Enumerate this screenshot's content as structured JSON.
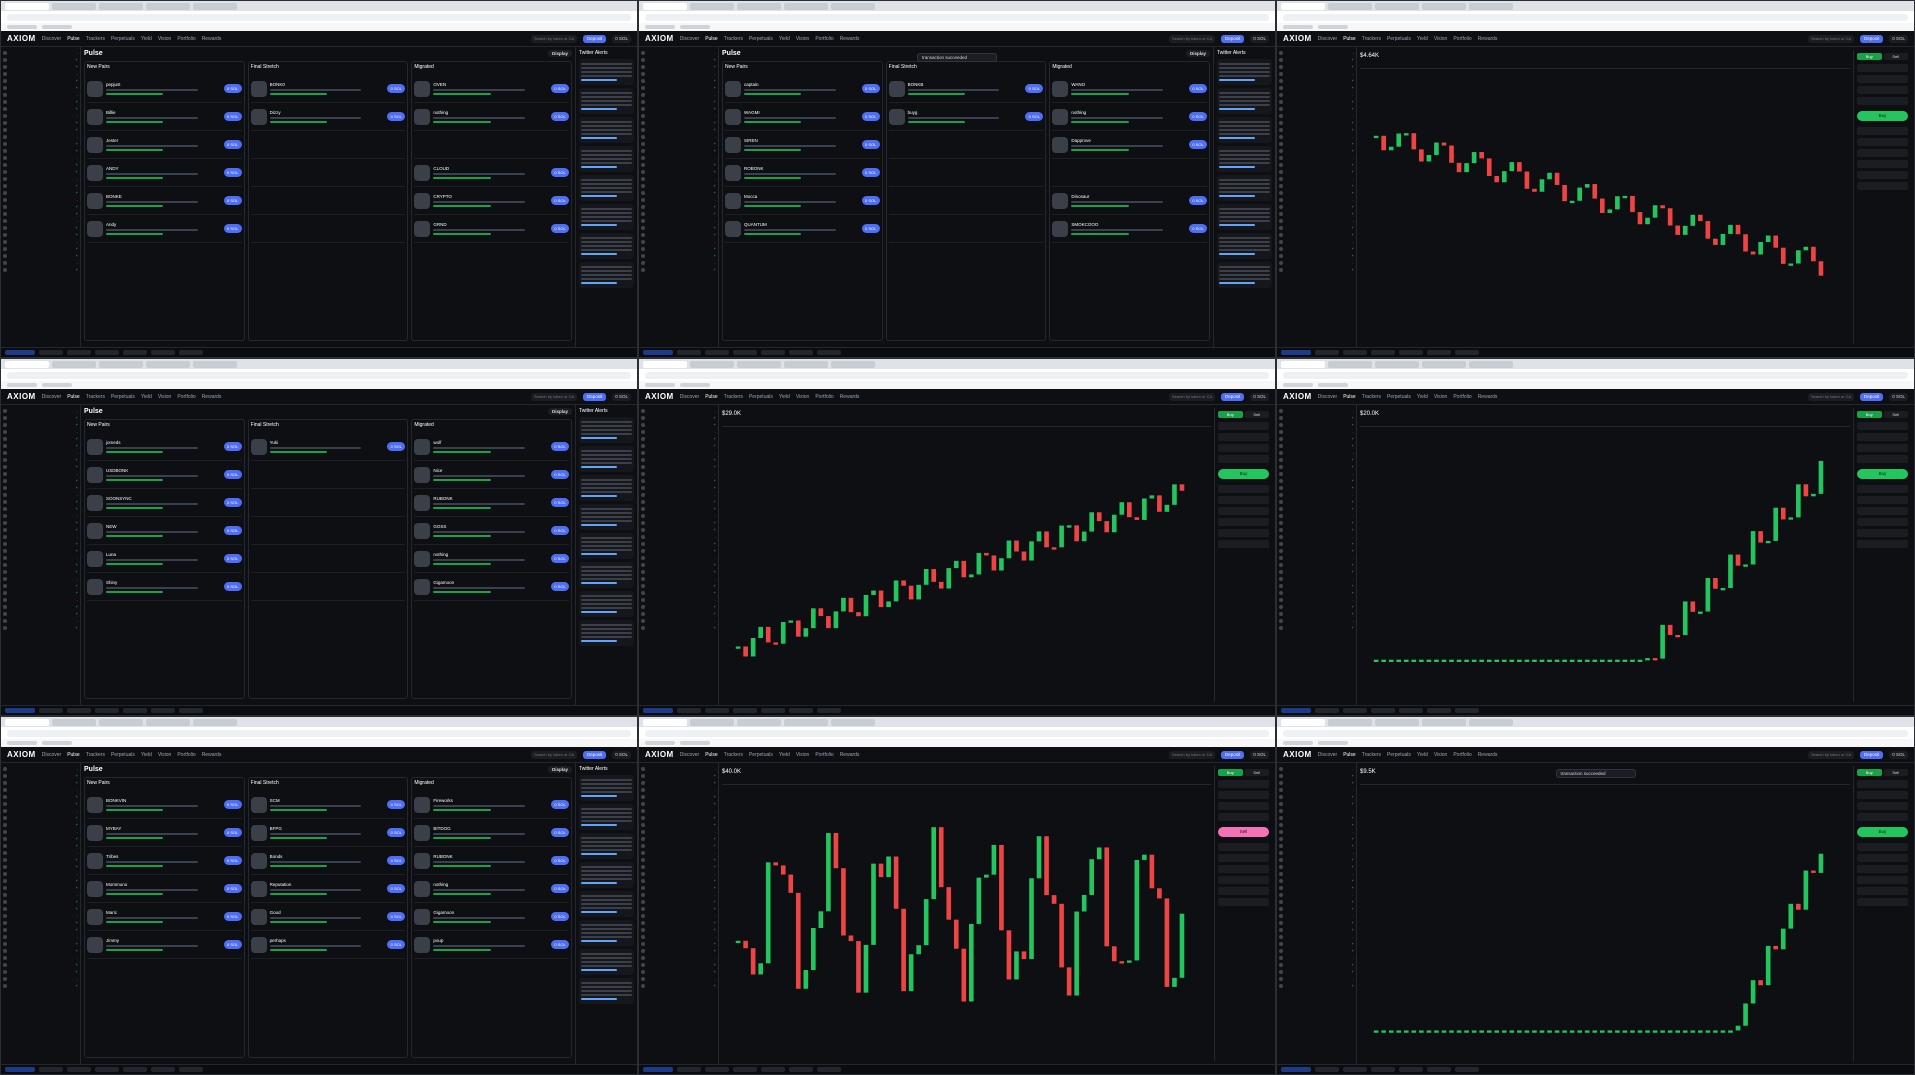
{
  "app": {
    "logo": "AXIOM",
    "nav": [
      "Discover",
      "Pulse",
      "Trackers",
      "Perpetuals",
      "Yield",
      "Vision",
      "Portfolio",
      "Rewards"
    ],
    "search_placeholder": "Search by token or CA",
    "deposit": "Deposit",
    "balance": "0 SOL"
  },
  "pulse": {
    "title": "Pulse",
    "display": "Display",
    "columns": [
      "New Pairs",
      "Final Stretch",
      "Migrated"
    ],
    "buy_label": "0 SOL"
  },
  "feed": {
    "title": "Twitter Alerts"
  },
  "chart": {
    "buy_label": "Buy",
    "sell_label": "Sell"
  },
  "toast": {
    "text": "transaction succeeded"
  },
  "tiles": [
    {
      "type": "pulse",
      "cards": [
        [
          "pepjust",
          "BONK0",
          "OVEN"
        ],
        [
          "Billie",
          "Dizzy",
          "nothing"
        ],
        [
          "Jester",
          "",
          ""
        ],
        [
          "ANDY",
          "",
          "CLOUD"
        ],
        [
          "BONKE",
          "",
          "CRYPTO"
        ],
        [
          "Andy",
          "",
          "GRND"
        ]
      ]
    },
    {
      "type": "pulse",
      "toast": true,
      "cards": [
        [
          "captain",
          "BONKB",
          "WANO"
        ],
        [
          "WAGMI",
          "buyg",
          "nothing"
        ],
        [
          "SIREN",
          "",
          "Dapprove"
        ],
        [
          "ROBONK",
          "",
          ""
        ],
        [
          "Mocca",
          "",
          "Dinosaur"
        ],
        [
          "QUANTUM",
          "",
          "SMOKCOOO"
        ]
      ]
    },
    {
      "type": "chart",
      "price": "$4.64K",
      "change": "",
      "trend": "down"
    },
    {
      "type": "pulse",
      "cards": [
        [
          "jomeds",
          "Yuki",
          "wolf"
        ],
        [
          "USDBONK",
          "",
          "Nice"
        ],
        [
          "SOONSYNC",
          "",
          "RUBONK"
        ],
        [
          "NEW",
          "",
          "GOSS"
        ],
        [
          "Luna",
          "",
          "nothing"
        ],
        [
          "Shiny",
          "",
          "Gigamoon"
        ]
      ]
    },
    {
      "type": "chart",
      "price": "$29.0K",
      "change": "",
      "trend": "up"
    },
    {
      "type": "chart",
      "price": "$20.0K",
      "change": "",
      "trend": "spike"
    },
    {
      "type": "pulse",
      "cards": [
        [
          "BONKVIN",
          "SCM",
          "Fireworks"
        ],
        [
          "MYBAY",
          "BFPG",
          "BITDOG"
        ],
        [
          "Tribes",
          "Bonds",
          "RUBONK"
        ],
        [
          "Mommuno",
          "Reputation",
          "nothing"
        ],
        [
          "Maric",
          "Good",
          "Gigamoon"
        ],
        [
          "Jimmy",
          "perhaps",
          "poup"
        ]
      ]
    },
    {
      "type": "chart",
      "price": "$40.0K",
      "change": "",
      "trend": "volatile",
      "sell": true
    },
    {
      "type": "chart",
      "price": "$9.5K",
      "change": "",
      "trend": "late",
      "toast": true
    }
  ]
}
